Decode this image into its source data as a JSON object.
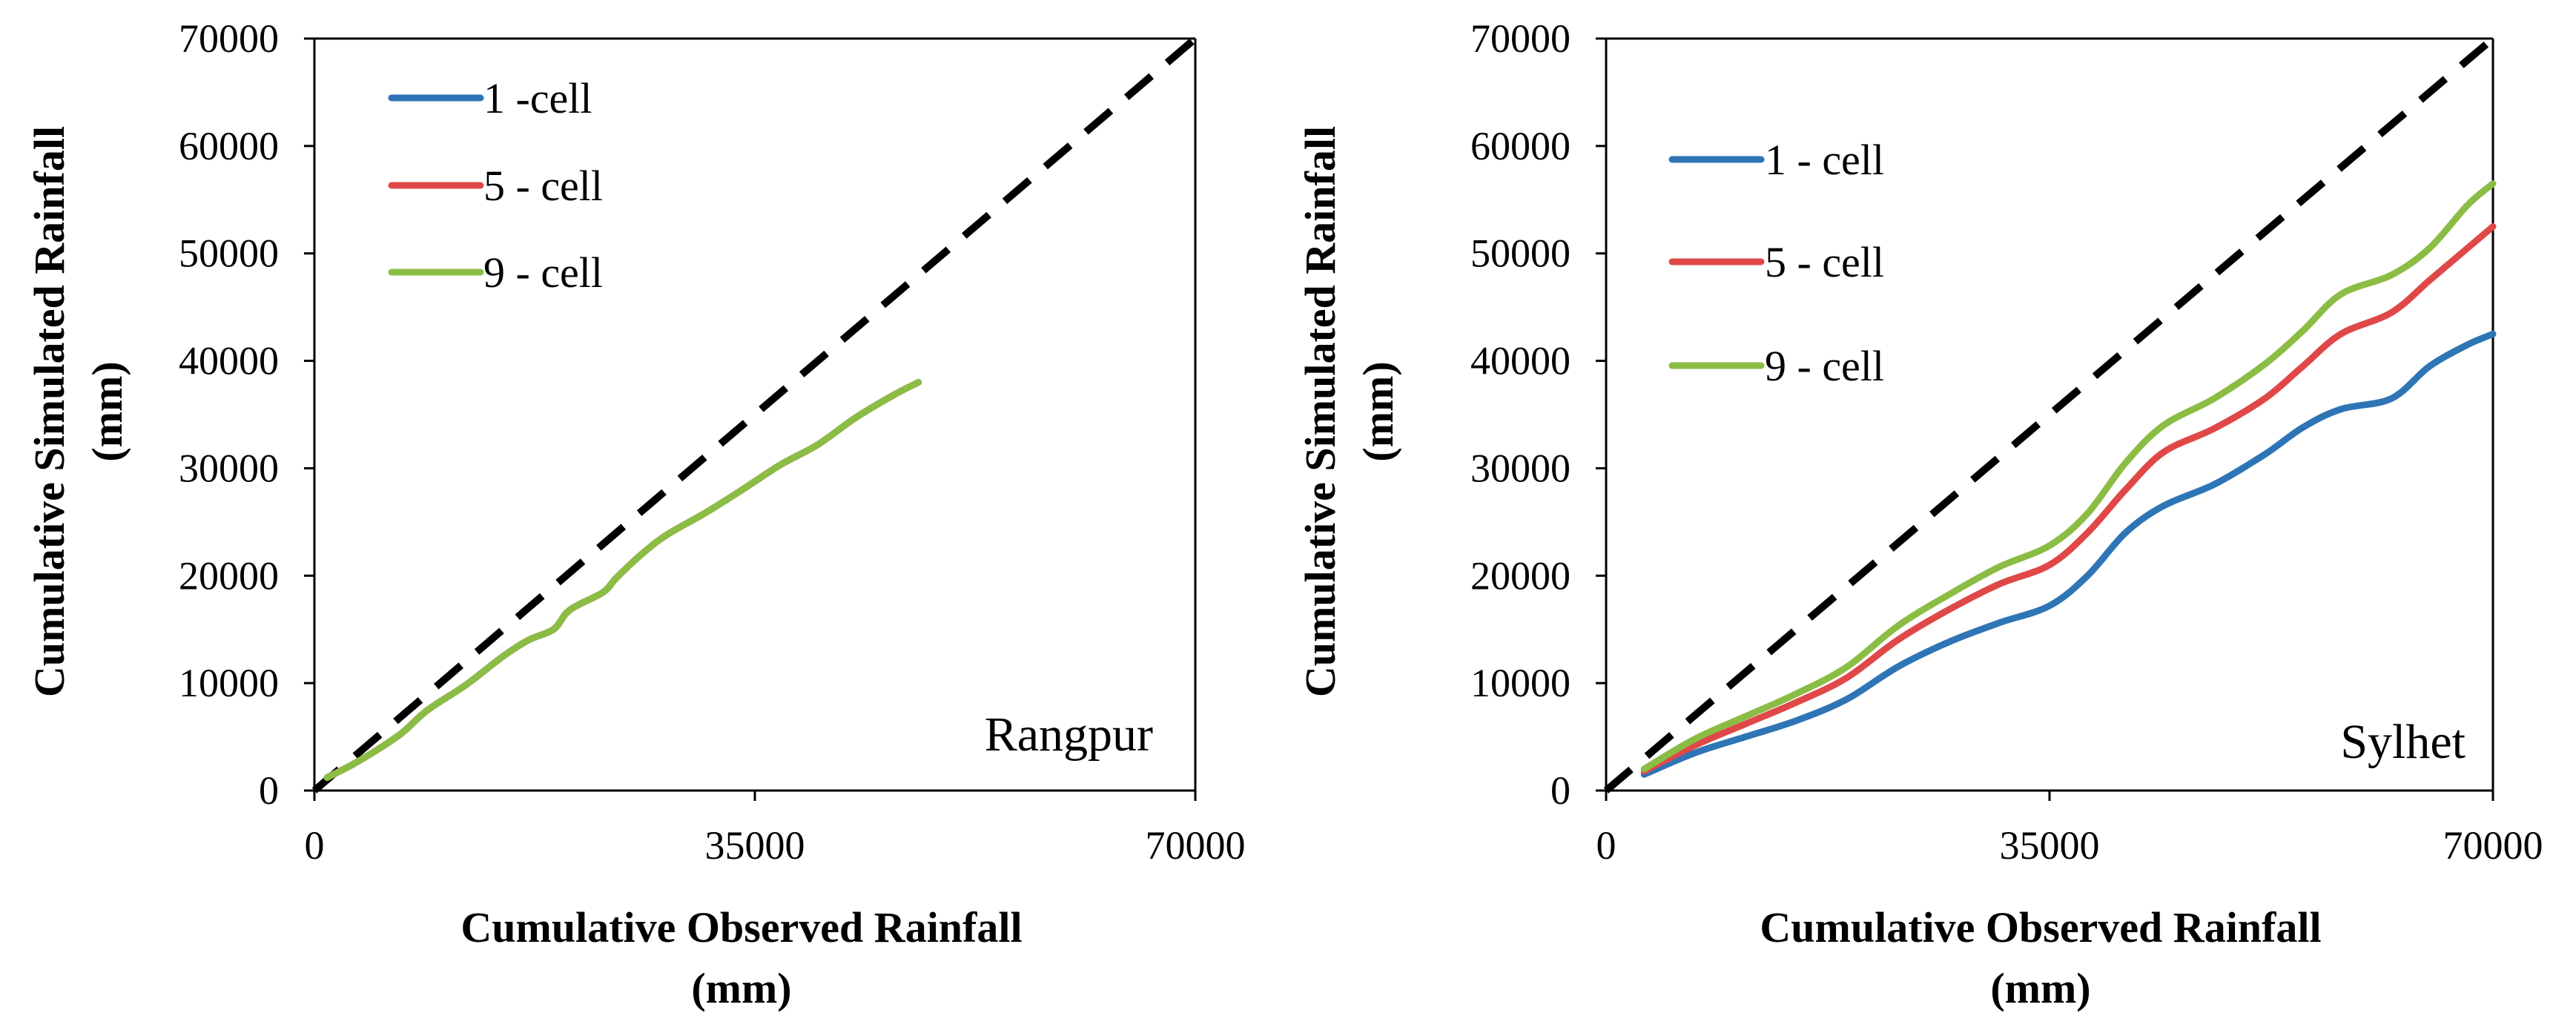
{
  "chart_data": [
    {
      "type": "line",
      "station": "Rangpur",
      "xlabel": [
        "Cumulative Observed Rainfall",
        "(mm)"
      ],
      "ylabel": [
        "Cumulative Simulated Rainfall",
        "(mm)"
      ],
      "xlim": [
        0,
        70000
      ],
      "ylim": [
        0,
        70000
      ],
      "xticks": [
        0,
        35000,
        70000
      ],
      "yticks": [
        0,
        10000,
        20000,
        30000,
        40000,
        50000,
        60000,
        70000
      ],
      "xtick_labels": [
        "0",
        "35000",
        "70000"
      ],
      "ytick_labels": [
        "0",
        "10000",
        "20000",
        "30000",
        "40000",
        "50000",
        "60000",
        "70000"
      ],
      "grid": false,
      "legend_position": "top-left",
      "reference_line": {
        "name": "1:1 line",
        "x": [
          0,
          70000
        ],
        "y": [
          0,
          70000
        ],
        "color": "#000000",
        "style": "dashed"
      },
      "series": [
        {
          "name": "1 -cell",
          "color": "#2e75b6",
          "x": [
            1000,
            3000,
            5000,
            7000,
            9000,
            12000,
            15000,
            17000,
            19000,
            20000,
            21000,
            23000,
            24000,
            26000,
            28000,
            31000,
            34000,
            37000,
            40000,
            43000,
            46000,
            48000
          ],
          "y": [
            1200,
            2400,
            3800,
            5400,
            7500,
            9800,
            12500,
            14000,
            15000,
            16500,
            17300,
            18500,
            19800,
            22000,
            23800,
            25800,
            28000,
            30300,
            32200,
            34700,
            36800,
            38000
          ]
        },
        {
          "name": "5 - cell",
          "color": "#e04848",
          "x": [
            1000,
            3000,
            5000,
            7000,
            9000,
            12000,
            15000,
            17000,
            19000,
            20000,
            21000,
            23000,
            24000,
            26000,
            28000,
            31000,
            34000,
            37000,
            40000,
            43000,
            46000,
            48000
          ],
          "y": [
            1200,
            2400,
            3800,
            5400,
            7500,
            9800,
            12500,
            14000,
            15000,
            16500,
            17300,
            18500,
            19800,
            22000,
            23800,
            25800,
            28000,
            30300,
            32200,
            34700,
            36800,
            38000
          ]
        },
        {
          "name": "9 - cell",
          "color": "#8bbd45",
          "x": [
            1000,
            3000,
            5000,
            7000,
            9000,
            12000,
            15000,
            17000,
            19000,
            20000,
            21000,
            23000,
            24000,
            26000,
            28000,
            31000,
            34000,
            37000,
            40000,
            43000,
            46000,
            48000
          ],
          "y": [
            1200,
            2400,
            3800,
            5400,
            7500,
            9800,
            12500,
            14000,
            15000,
            16500,
            17300,
            18500,
            19800,
            22000,
            23800,
            25800,
            28000,
            30300,
            32200,
            34700,
            36800,
            38000
          ]
        }
      ]
    },
    {
      "type": "line",
      "station": "Sylhet",
      "xlabel": [
        "Cumulative Observed Rainfall",
        "(mm)"
      ],
      "ylabel": [
        "Cumulative Simulated  Rainfall",
        "(mm)"
      ],
      "xlim": [
        0,
        70000
      ],
      "ylim": [
        0,
        70000
      ],
      "xticks": [
        0,
        35000,
        70000
      ],
      "yticks": [
        0,
        10000,
        20000,
        30000,
        40000,
        50000,
        60000,
        70000
      ],
      "xtick_labels": [
        "0",
        "35000",
        "70000"
      ],
      "ytick_labels": [
        "0",
        "10000",
        "20000",
        "30000",
        "40000",
        "50000",
        "60000",
        "70000"
      ],
      "grid": false,
      "legend_position": "top-left",
      "reference_line": {
        "name": "1:1 line",
        "x": [
          0,
          70000
        ],
        "y": [
          0,
          70000
        ],
        "color": "#000000",
        "style": "dashed"
      },
      "series": [
        {
          "name": "1 - cell",
          "color": "#2e75b6",
          "x": [
            3000,
            7000,
            11000,
            15000,
            19000,
            23000,
            27000,
            31000,
            35000,
            38000,
            41000,
            44000,
            48000,
            52000,
            55000,
            58000,
            62000,
            65000,
            68000,
            70000
          ],
          "y": [
            1500,
            3500,
            5000,
            6500,
            8500,
            11500,
            13800,
            15600,
            17200,
            20000,
            24000,
            26500,
            28500,
            31300,
            33800,
            35500,
            36500,
            39500,
            41500,
            42500
          ]
        },
        {
          "name": "5 - cell",
          "color": "#e04848",
          "x": [
            3000,
            7000,
            11000,
            15000,
            19000,
            23000,
            27000,
            31000,
            35000,
            38000,
            41000,
            44000,
            48000,
            52000,
            55000,
            58000,
            62000,
            65000,
            68000,
            70000
          ],
          "y": [
            1800,
            4200,
            6200,
            8200,
            10500,
            14000,
            16800,
            19200,
            21000,
            24000,
            28000,
            31500,
            33700,
            36500,
            39500,
            42500,
            44500,
            47500,
            50500,
            52500
          ]
        },
        {
          "name": "9 - cell",
          "color": "#8bbd45",
          "x": [
            3000,
            7000,
            11000,
            15000,
            19000,
            23000,
            27000,
            31000,
            35000,
            38000,
            41000,
            44000,
            48000,
            52000,
            55000,
            58000,
            62000,
            65000,
            68000,
            70000
          ],
          "y": [
            2000,
            4800,
            6900,
            9000,
            11500,
            15300,
            18200,
            20800,
            22800,
            25800,
            30500,
            34000,
            36500,
            39700,
            42800,
            46200,
            48000,
            50500,
            54500,
            56500
          ]
        }
      ]
    }
  ]
}
